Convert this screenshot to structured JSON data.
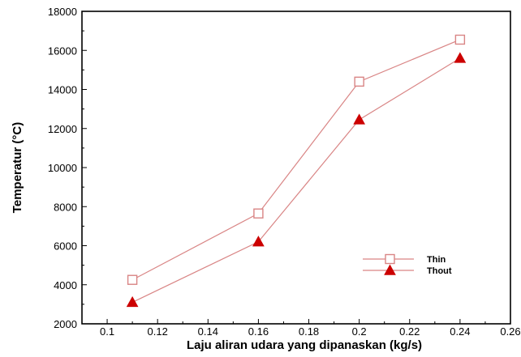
{
  "chart_data": {
    "type": "line",
    "title": "",
    "xlabel": "Laju aliran udara yang dipanaskan (kg/s)",
    "ylabel": "Temperatur (°C)",
    "xlim": [
      0.09,
      0.26
    ],
    "ylim": [
      2000,
      18000
    ],
    "xticks": [
      "0.1",
      "0.12",
      "0.14",
      "0.16",
      "0.18",
      "0.2",
      "0.22",
      "0.24",
      "0.26"
    ],
    "yticks": [
      "2000",
      "4000",
      "6000",
      "8000",
      "10000",
      "12000",
      "14000",
      "16000",
      "18000"
    ],
    "grid": false,
    "legend_position": "lower-right",
    "series": [
      {
        "name": "Thin",
        "marker": "open-square",
        "color": "#d98585",
        "x": [
          0.11,
          0.16,
          0.2,
          0.24
        ],
        "y": [
          4250,
          7650,
          14400,
          16550
        ]
      },
      {
        "name": "Thout",
        "marker": "filled-triangle",
        "color": "#cc0000",
        "line_color": "#d98585",
        "x": [
          0.11,
          0.16,
          0.2,
          0.24
        ],
        "y": [
          3100,
          6200,
          12450,
          15600
        ]
      }
    ]
  }
}
